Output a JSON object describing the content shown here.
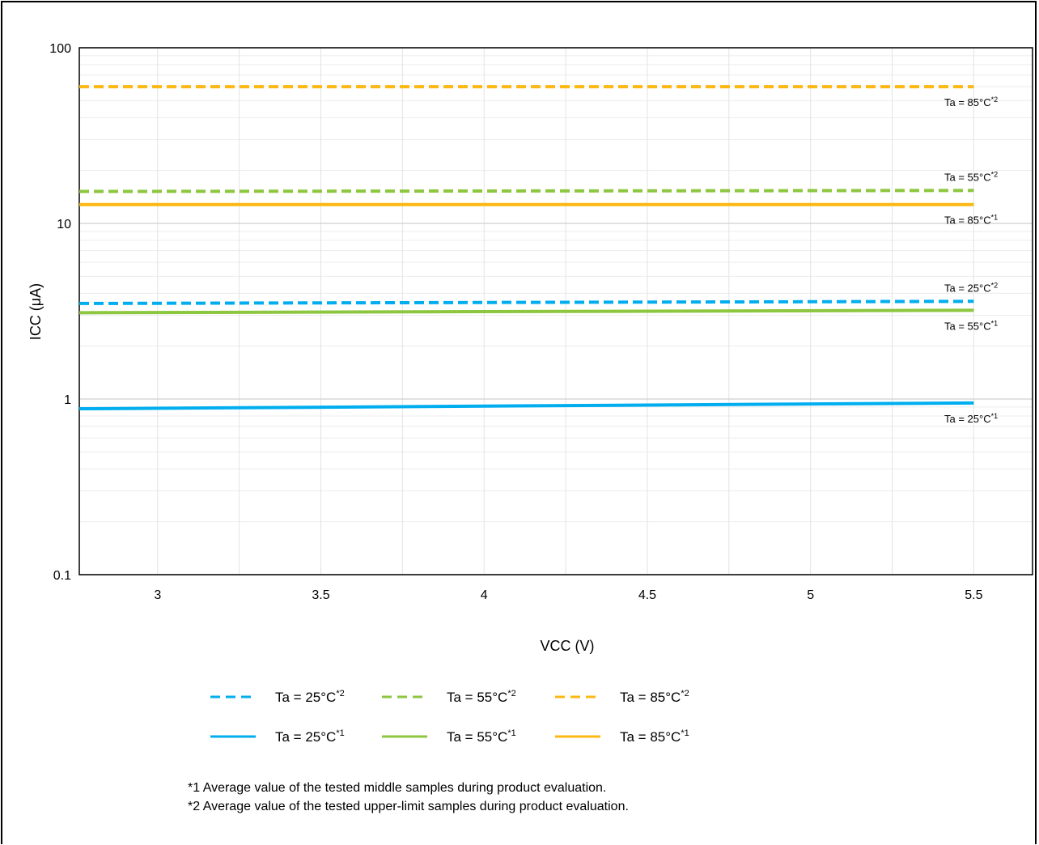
{
  "chart_data": {
    "type": "line",
    "xlabel": "VCC (V)",
    "ylabel": "ICC (μA)",
    "xlim": [
      2.76,
      5.68
    ],
    "ylim": [
      0.1,
      100
    ],
    "yscale": "log",
    "x_ticks": [
      3,
      3.5,
      4,
      4.5,
      5,
      5.5
    ],
    "y_ticks": [
      0.1,
      1,
      10,
      100
    ],
    "y_tick_labels": [
      "0.1",
      "1",
      "10",
      "100"
    ],
    "x_tick_labels": [
      "3",
      "3.5",
      "4",
      "4.5",
      "5",
      "5.5"
    ],
    "grid": true,
    "legend_position": "bottom",
    "series": [
      {
        "name": "Ta = 25°C",
        "sup": "*2",
        "color": "#00aeef",
        "dash": true,
        "x": [
          2.76,
          5.5
        ],
        "y": [
          3.5,
          3.6
        ]
      },
      {
        "name": "Ta = 55°C",
        "sup": "*2",
        "color": "#8dc63f",
        "dash": true,
        "x": [
          2.76,
          5.5
        ],
        "y": [
          15.2,
          15.4
        ]
      },
      {
        "name": "Ta = 85°C",
        "sup": "*2",
        "color": "#fcb813",
        "dash": true,
        "x": [
          2.76,
          5.5
        ],
        "y": [
          60,
          60
        ]
      },
      {
        "name": "Ta = 25°C",
        "sup": "*1",
        "color": "#00aeef",
        "dash": false,
        "x": [
          2.76,
          5.5
        ],
        "y": [
          0.88,
          0.95
        ]
      },
      {
        "name": "Ta = 55°C",
        "sup": "*1",
        "color": "#8dc63f",
        "dash": false,
        "x": [
          2.76,
          5.5
        ],
        "y": [
          3.1,
          3.2
        ]
      },
      {
        "name": "Ta = 85°C",
        "sup": "*1",
        "color": "#fcb813",
        "dash": false,
        "x": [
          2.76,
          5.5
        ],
        "y": [
          12.8,
          12.8
        ]
      }
    ],
    "annotations": [
      {
        "text": "Ta = 85°C",
        "sup": "*2",
        "series": 2,
        "side": "below"
      },
      {
        "text": "Ta = 55°C",
        "sup": "*2",
        "series": 1,
        "side": "above"
      },
      {
        "text": "Ta = 85°C",
        "sup": "*1",
        "series": 5,
        "side": "below"
      },
      {
        "text": "Ta = 25°C",
        "sup": "*2",
        "series": 0,
        "side": "above"
      },
      {
        "text": "Ta = 55°C",
        "sup": "*1",
        "series": 4,
        "side": "below"
      },
      {
        "text": "Ta = 25°C",
        "sup": "*1",
        "series": 3,
        "side": "below"
      }
    ]
  },
  "notes": {
    "note1": "*1 Average value of the tested middle samples during product evaluation.",
    "note2": "*2 Average value of the tested upper-limit samples during product evaluation."
  }
}
